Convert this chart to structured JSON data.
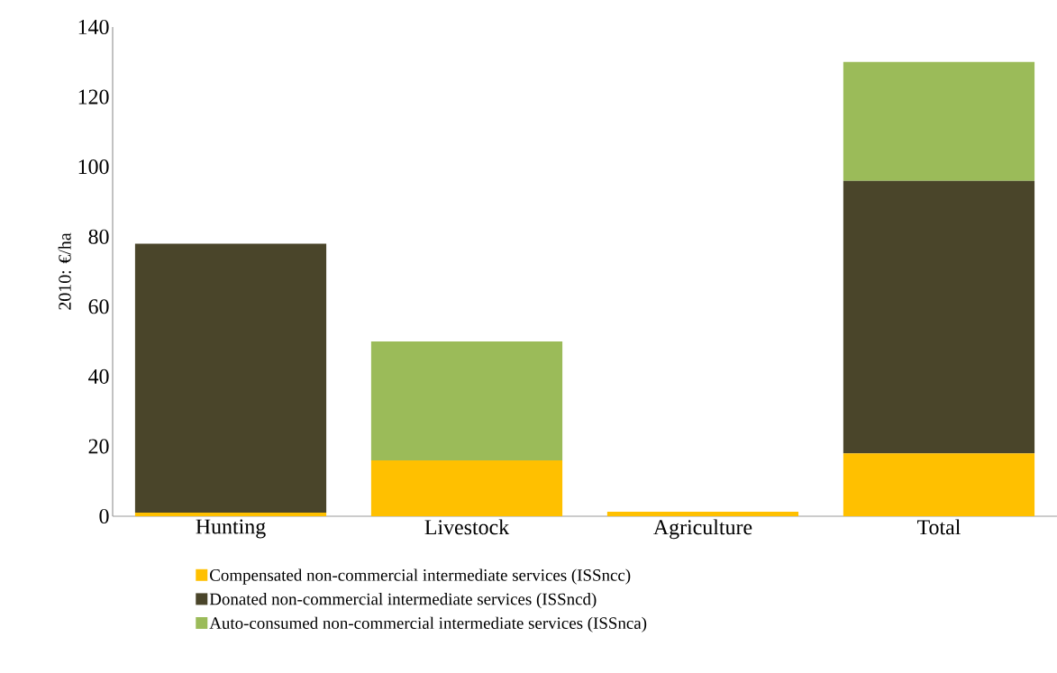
{
  "chart_data": {
    "type": "bar",
    "stacked": true,
    "ylabel": "2010: €/ha",
    "categories": [
      "Hunting",
      "Livestock",
      "Agriculture",
      "Total"
    ],
    "series": [
      {
        "name": "Compensated non-commercial intermediate services (ISSncc)",
        "color": "#ffc000",
        "values": [
          1,
          16,
          1.3,
          18
        ]
      },
      {
        "name": "Donated non-commercial intermediate services (ISSncd)",
        "color": "#4a452a",
        "values": [
          77,
          0,
          0,
          78
        ]
      },
      {
        "name": "Auto-consumed non-commercial intermediate services (ISSnca)",
        "color": "#9bbb59",
        "values": [
          0,
          34,
          0,
          34
        ]
      }
    ],
    "ylim": [
      0,
      140
    ],
    "yticks": [
      0,
      20,
      40,
      60,
      80,
      100,
      120,
      140
    ],
    "grid": false,
    "legend": "bottom"
  }
}
